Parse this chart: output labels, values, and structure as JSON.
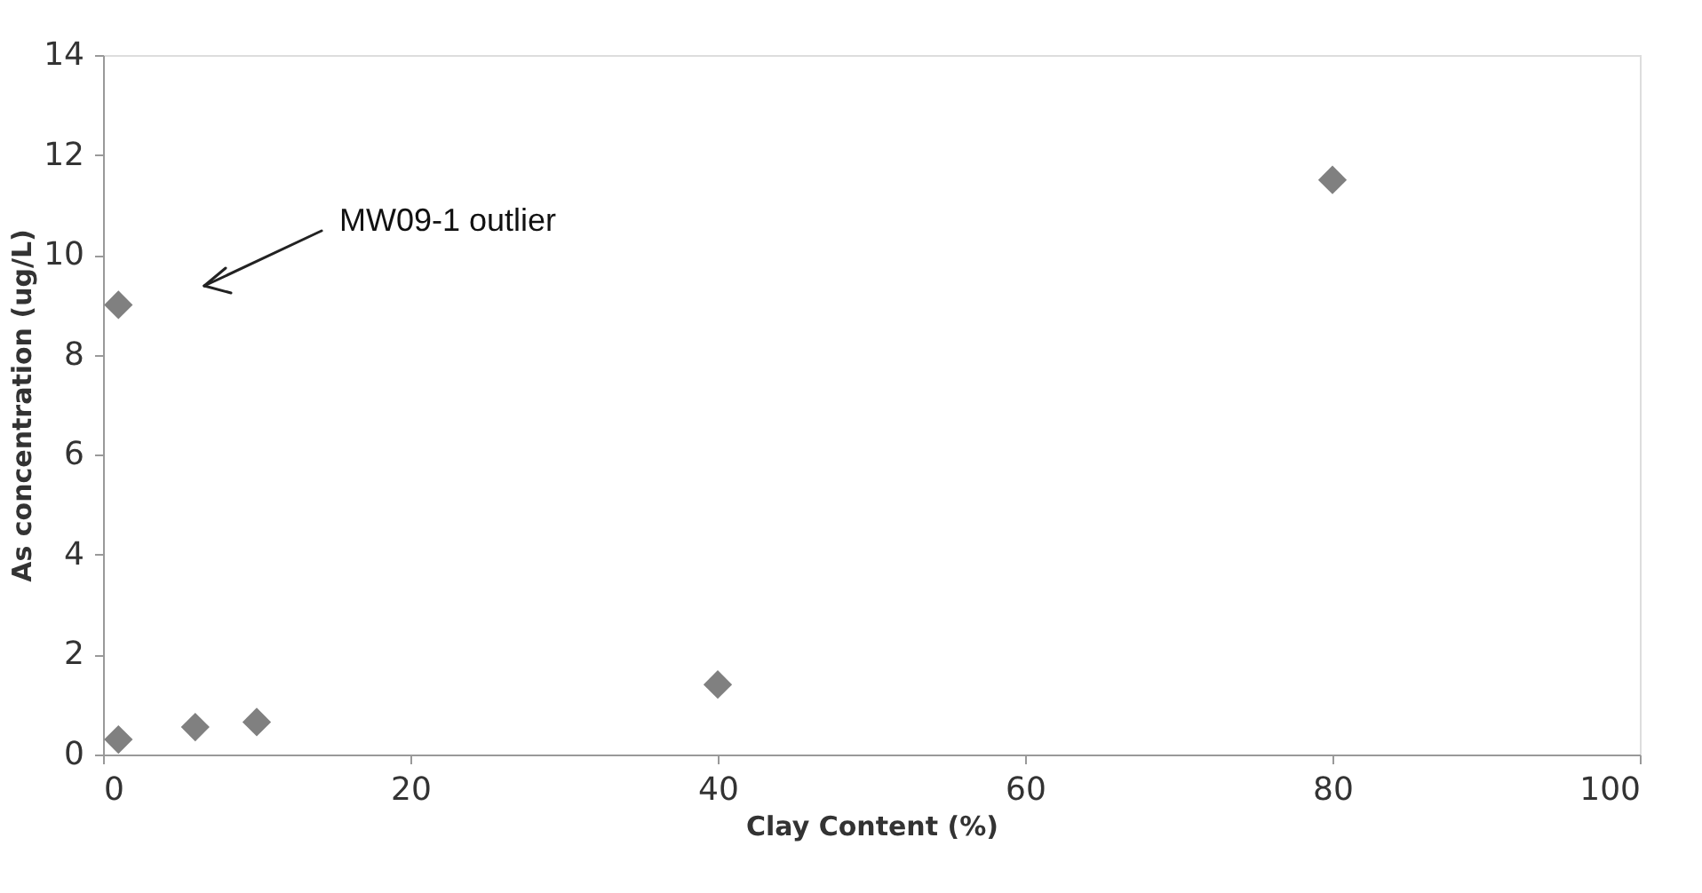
{
  "chart_data": {
    "type": "scatter",
    "xlabel": "Clay Content (%)",
    "ylabel": "As concentration (ug/L)",
    "x": [
      1,
      6,
      10,
      40,
      80,
      1
    ],
    "values": [
      0.3,
      0.55,
      0.65,
      1.4,
      11.5,
      9.0
    ],
    "color": "#808080",
    "marker": "diamond",
    "grid": false,
    "xlim": [
      0,
      100
    ],
    "xticks": [
      0,
      20,
      40,
      60,
      80,
      100
    ],
    "ylim": [
      0,
      14
    ],
    "yticks": [
      0,
      2,
      4,
      6,
      8,
      10,
      12,
      14
    ],
    "annotations": [
      "MW09-1 outlier"
    ]
  }
}
